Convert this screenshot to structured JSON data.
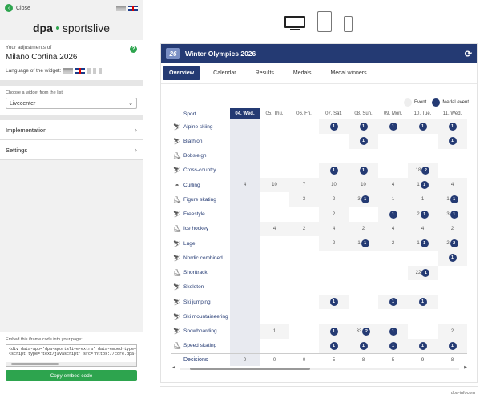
{
  "sidebar": {
    "close_label": "Close",
    "logo_prefix": "dpa",
    "logo_suffix": "sportslive",
    "adjustments_label": "Your adjustments of",
    "adjustments_title": "Milano Cortina 2026",
    "help_label": "?",
    "language_label": "Language of the widget:",
    "choose_label": "Choose a widget from the list.",
    "selected_widget": "Livecenter",
    "accordion": [
      "Implementation",
      "Settings"
    ],
    "embed_label": "Embed this iframe code into your page:",
    "embed_code": "<div data-app='dpa-sportslive-extra' data-embed-type='ifra\n<script type='text/javascript' src='https://core.dpa-infocom",
    "copy_button": "Copy embed code"
  },
  "widget": {
    "title": "Winter Olympics 2026",
    "logo_text": "26",
    "tabs": [
      "Overview",
      "Calendar",
      "Results",
      "Medals",
      "Medal winners"
    ],
    "active_tab": 0,
    "legend": {
      "event": "Event",
      "medal": "Medal event"
    },
    "sport_header": "Sport",
    "days": [
      "04. Wed.",
      "05. Thu.",
      "06. Fri.",
      "07. Sat.",
      "08. Sun.",
      "09. Mon.",
      "10. Tue.",
      "11. Wed."
    ],
    "today_index": 0,
    "sports": [
      {
        "name": "Alpine skiing",
        "icon": "alpine-skiing-icon",
        "cells": [
          "",
          "",
          "",
          "m1",
          "m1",
          "m1",
          "m1",
          "m1"
        ]
      },
      {
        "name": "Biathlon",
        "icon": "biathlon-icon",
        "cells": [
          "",
          "",
          "",
          "",
          "m1",
          "",
          "",
          "m1"
        ]
      },
      {
        "name": "Bobsleigh",
        "icon": "bobsleigh-icon",
        "cells": [
          "",
          "",
          "",
          "",
          "",
          "",
          "",
          ""
        ]
      },
      {
        "name": "Cross-country",
        "icon": "cross-country-icon",
        "cells": [
          "",
          "",
          "",
          "m1",
          "m1",
          "",
          "18|m2",
          ""
        ]
      },
      {
        "name": "Curling",
        "icon": "curling-icon",
        "cells": [
          "4",
          "10",
          "7",
          "10",
          "10",
          "4",
          "1|m1",
          "4"
        ]
      },
      {
        "name": "Figure skating",
        "icon": "figure-skating-icon",
        "cells": [
          "",
          "",
          "3",
          "2",
          "3|m1",
          "1",
          "1",
          "1|m1"
        ]
      },
      {
        "name": "Freestyle",
        "icon": "freestyle-icon",
        "cells": [
          "",
          "",
          "",
          "2",
          "",
          "m1",
          "2|m1",
          "3|m1"
        ]
      },
      {
        "name": "Ice hockey",
        "icon": "ice-hockey-icon",
        "cells": [
          "",
          "4",
          "2",
          "4",
          "2",
          "4",
          "4",
          "2"
        ]
      },
      {
        "name": "Luge",
        "icon": "luge-icon",
        "cells": [
          "",
          "",
          "",
          "2",
          "1|m1",
          "2",
          "1|m1",
          "2|m2"
        ]
      },
      {
        "name": "Nordic combined",
        "icon": "nordic-combined-icon",
        "cells": [
          "",
          "",
          "",
          "",
          "",
          "",
          "",
          "m1"
        ]
      },
      {
        "name": "Shorttrack",
        "icon": "shorttrack-icon",
        "cells": [
          "",
          "",
          "",
          "",
          "",
          "",
          "22|m1",
          ""
        ]
      },
      {
        "name": "Skeleton",
        "icon": "skeleton-icon",
        "cells": [
          "",
          "",
          "",
          "",
          "",
          "",
          "",
          ""
        ]
      },
      {
        "name": "Ski jumping",
        "icon": "ski-jumping-icon",
        "cells": [
          "",
          "",
          "",
          "m1",
          "",
          "m1",
          "m1",
          ""
        ]
      },
      {
        "name": "Ski mountaineering",
        "icon": "ski-mountaineering-icon",
        "cells": [
          "",
          "",
          "",
          "",
          "",
          "",
          "",
          ""
        ]
      },
      {
        "name": "Snowboarding",
        "icon": "snowboarding-icon",
        "cells": [
          "",
          "1",
          "",
          "m1",
          "33|m2",
          "m1",
          "",
          "2"
        ]
      },
      {
        "name": "Speed skating",
        "icon": "speed-skating-icon",
        "cells": [
          "",
          "",
          "",
          "m1",
          "m1",
          "m1",
          "m1",
          "m1"
        ]
      }
    ],
    "decisions_label": "Decisions",
    "decisions": [
      "0",
      "0",
      "0",
      "5",
      "8",
      "5",
      "9",
      "8"
    ],
    "footer": "dpa-infocom"
  },
  "colors": {
    "accent": "#243a73",
    "green": "#2da44e"
  }
}
